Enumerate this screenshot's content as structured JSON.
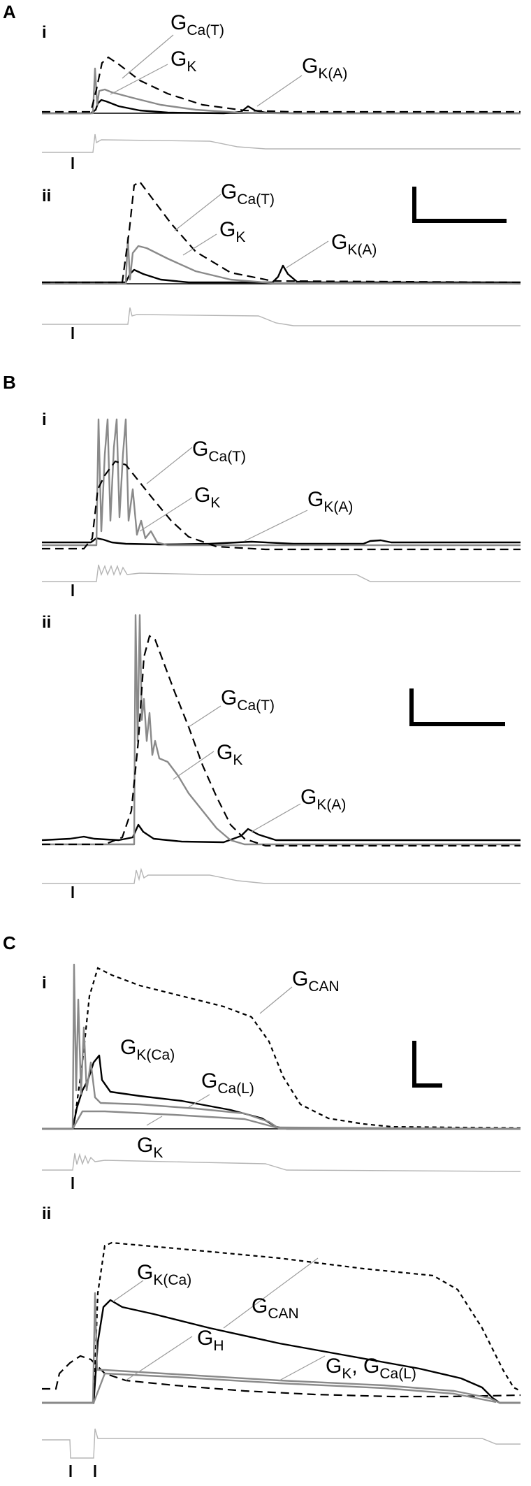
{
  "panels": {
    "A": {
      "letter": "A",
      "i": {
        "label": "i",
        "labels": {
          "ca_t": {
            "g": "G",
            "sub": "Ca(T)"
          },
          "k": {
            "g": "G",
            "sub": "K"
          },
          "ka": {
            "g": "G",
            "sub": "K(A)"
          }
        },
        "marker": "I"
      },
      "ii": {
        "label": "ii",
        "labels": {
          "ca_t": {
            "g": "G",
            "sub": "Ca(T)"
          },
          "k": {
            "g": "G",
            "sub": "K"
          },
          "ka": {
            "g": "G",
            "sub": "K(A)"
          }
        },
        "marker": "I"
      }
    },
    "B": {
      "letter": "B",
      "i": {
        "label": "i",
        "labels": {
          "ca_t": {
            "g": "G",
            "sub": "Ca(T)"
          },
          "k": {
            "g": "G",
            "sub": "K"
          },
          "ka": {
            "g": "G",
            "sub": "K(A)"
          }
        },
        "marker": "I"
      },
      "ii": {
        "label": "ii",
        "labels": {
          "ca_t": {
            "g": "G",
            "sub": "Ca(T)"
          },
          "k": {
            "g": "G",
            "sub": "K"
          },
          "ka": {
            "g": "G",
            "sub": "K(A)"
          }
        },
        "marker": "I"
      }
    },
    "C": {
      "letter": "C",
      "i": {
        "label": "i",
        "labels": {
          "can": {
            "g": "G",
            "sub": "CAN"
          },
          "kca": {
            "g": "G",
            "sub": "K(Ca)"
          },
          "cal": {
            "g": "G",
            "sub": "Ca(L)"
          },
          "k": {
            "g": "G",
            "sub": "K"
          }
        },
        "marker": "I"
      },
      "ii": {
        "label": "ii",
        "labels": {
          "kca": {
            "g": "G",
            "sub": "K(Ca)"
          },
          "can": {
            "g": "G",
            "sub": "CAN"
          },
          "h": {
            "g": "G",
            "sub": "H"
          },
          "k_cal": {
            "g": "G",
            "sub": "K",
            "sep": ", ",
            "g2": "G",
            "sub2": "Ca(L)"
          }
        },
        "markers": [
          "I",
          "I"
        ]
      }
    }
  },
  "trace_colors": {
    "black": "#000000",
    "gray": "#8a8a8a",
    "light": "#b5b5b5",
    "leader": "#9a9a9a"
  }
}
